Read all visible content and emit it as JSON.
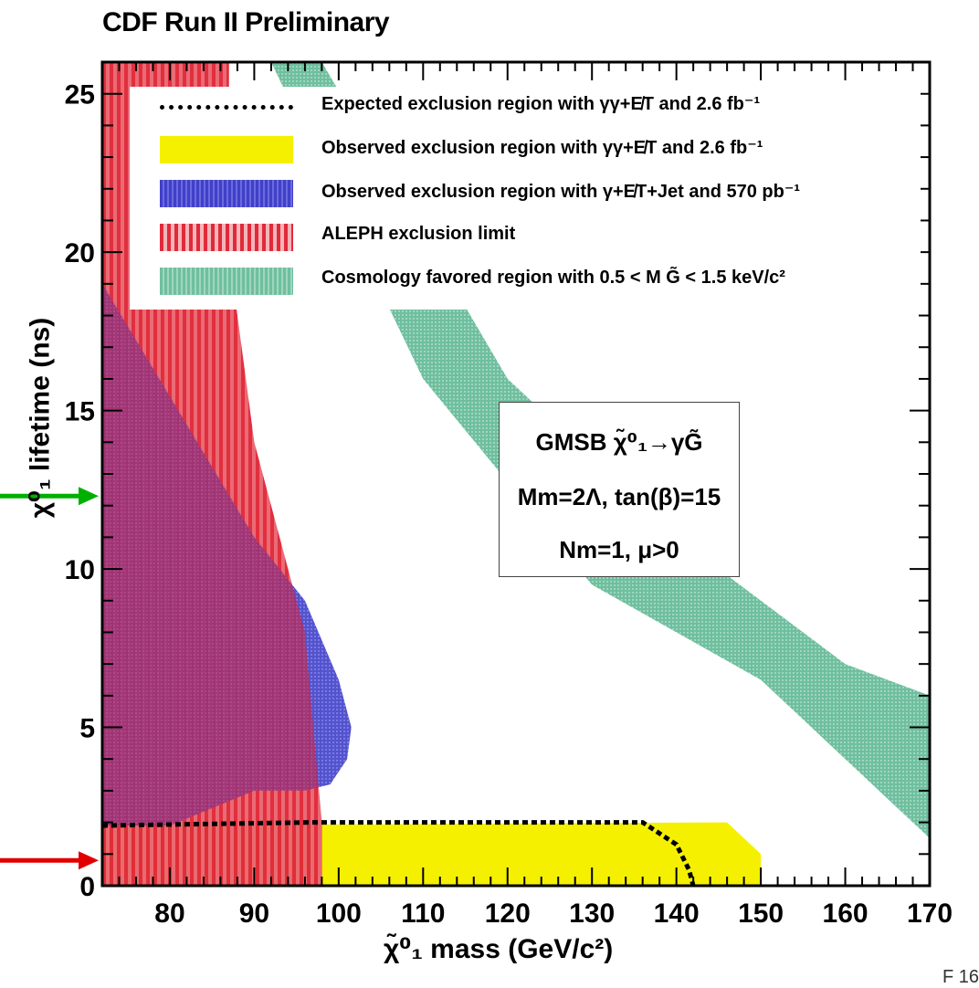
{
  "title": "CDF Run II Preliminary",
  "chart_data": {
    "type": "area",
    "title": "CDF Run II Preliminary",
    "xlabel": "χ̃⁰₁ mass (GeV/c²)",
    "ylabel": "χ⁰₁ lifetime (ns)",
    "xlim": [
      72,
      170
    ],
    "ylim": [
      0,
      26
    ],
    "xticks": [
      80,
      90,
      100,
      110,
      120,
      130,
      140,
      150,
      160,
      170
    ],
    "yticks": [
      0,
      5,
      10,
      15,
      20,
      25
    ],
    "grid": false,
    "legend_position": "top",
    "series": [
      {
        "name": "Expected exclusion region with γγ+E̸T and 2.6 fb⁻¹",
        "style": "dotted-line",
        "color": "#000000",
        "x": [
          72,
          97,
          136,
          140,
          141.5,
          142
        ],
        "y": [
          1.9,
          2.0,
          2.0,
          1.3,
          0.5,
          0
        ]
      },
      {
        "name": "Observed exclusion region with γγ+E̸T and 2.6 fb⁻¹",
        "style": "fill",
        "color": "#f5f000",
        "x": [
          72,
          146,
          150,
          150,
          72
        ],
        "y": [
          1.9,
          2.0,
          1.0,
          0,
          0
        ]
      },
      {
        "name": "Observed exclusion region with γ+E̸T+Jet and 570 pb⁻¹",
        "style": "fill",
        "color": "#4040c8",
        "x": [
          72,
          90,
          96,
          100,
          101.5,
          101,
          99,
          96,
          90,
          80,
          72
        ],
        "y": [
          19,
          11,
          9,
          6.5,
          5,
          4,
          3.2,
          3,
          3,
          1.9,
          1.9
        ]
      },
      {
        "name": "ALEPH exclusion limit",
        "style": "fill",
        "color": "#e02a3a",
        "x": [
          72,
          87,
          87,
          90,
          96,
          97,
          98,
          98,
          72
        ],
        "y": [
          26,
          26,
          20,
          14,
          8,
          5,
          2,
          0,
          0
        ]
      },
      {
        "name": "Cosmology favored region with 0.5 < M G̃ < 1.5 keV/c²",
        "style": "fill",
        "color": "#6fbf9f",
        "outer_x": [
          92,
          110,
          130,
          150,
          170
        ],
        "outer_y": [
          26,
          16,
          9.5,
          6.5,
          1.5
        ],
        "inner_x": [
          98,
          120,
          140,
          160,
          170
        ],
        "inner_y": [
          26,
          16,
          11,
          7,
          6
        ]
      }
    ],
    "annotations": [
      {
        "type": "arrow",
        "color": "#00b000",
        "y": 12.3
      },
      {
        "type": "arrow",
        "color": "#e00000",
        "y": 0.8
      }
    ]
  },
  "infobox": {
    "line1": "GMSB χ̃⁰₁→γG̃",
    "line2": "Mm=2Λ, tan(β)=15",
    "line3": "Nm=1, μ>0"
  },
  "corner_text": "F     16"
}
